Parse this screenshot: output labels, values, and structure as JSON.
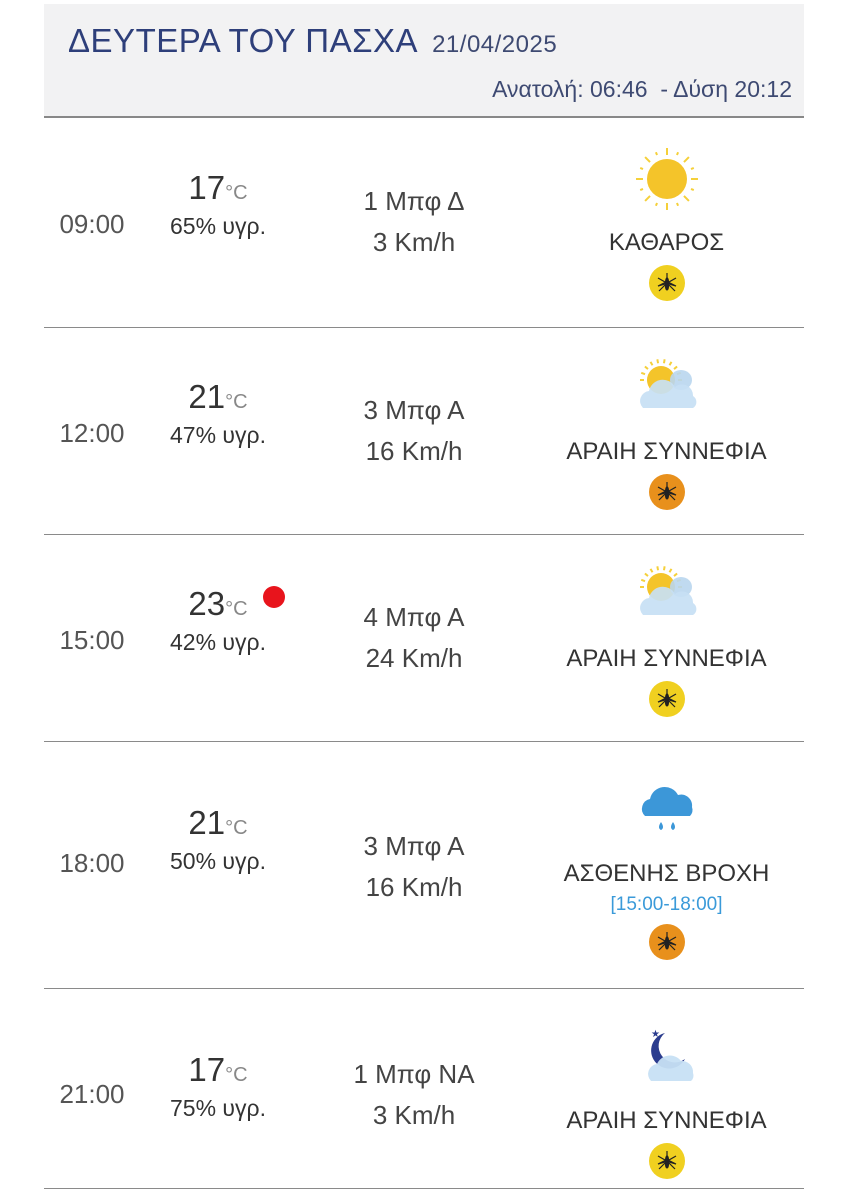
{
  "header": {
    "title": "ΔΕΥΤΕΡΑ ΤΟΥ ΠΑΣΧΑ",
    "date": "21/04/2025",
    "sun_times": "Ανατολή: 06:46  - Δύση 20:12"
  },
  "colors": {
    "title": "#2e3f7a",
    "range": "#3a9ad9",
    "mosquito_low": "#f0d020",
    "mosquito_mid": "#e8901c",
    "alert_dot": "#e8141c"
  },
  "rows": [
    {
      "time": "09:00",
      "temp": "17",
      "unit": "°C",
      "humidity": "65% υγρ.",
      "wind_bf": "1 Μπφ Δ",
      "wind_kmh": "3 Km/h",
      "icon": "sun-icon",
      "condition": "ΚΑΘΑΡΟΣ",
      "mosquito_level": "low"
    },
    {
      "time": "12:00",
      "temp": "21",
      "unit": "°C",
      "humidity": "47% υγρ.",
      "wind_bf": "3 Μπφ Α",
      "wind_kmh": "16 Km/h",
      "icon": "partly-cloudy-icon",
      "condition": "ΑΡΑΙΗ ΣΥΝΝΕΦΙΑ",
      "mosquito_level": "mid"
    },
    {
      "time": "15:00",
      "temp": "23",
      "unit": "°C",
      "humidity": "42% υγρ.",
      "wind_bf": "4 Μπφ Α",
      "wind_kmh": "24 Km/h",
      "icon": "partly-cloudy-icon",
      "condition": "ΑΡΑΙΗ ΣΥΝΝΕΦΙΑ",
      "mosquito_level": "low",
      "alert": true
    },
    {
      "time": "18:00",
      "temp": "21",
      "unit": "°C",
      "humidity": "50% υγρ.",
      "wind_bf": "3 Μπφ Α",
      "wind_kmh": "16 Km/h",
      "icon": "rain-icon",
      "condition": "ΑΣΘΕΝΗΣ ΒΡΟΧΗ",
      "range": "[15:00-18:00]",
      "mosquito_level": "mid"
    },
    {
      "time": "21:00",
      "temp": "17",
      "unit": "°C",
      "humidity": "75% υγρ.",
      "wind_bf": "1 Μπφ ΝΑ",
      "wind_kmh": "3 Km/h",
      "icon": "night-cloudy-icon",
      "condition": "ΑΡΑΙΗ ΣΥΝΝΕΦΙΑ",
      "mosquito_level": "low"
    }
  ]
}
